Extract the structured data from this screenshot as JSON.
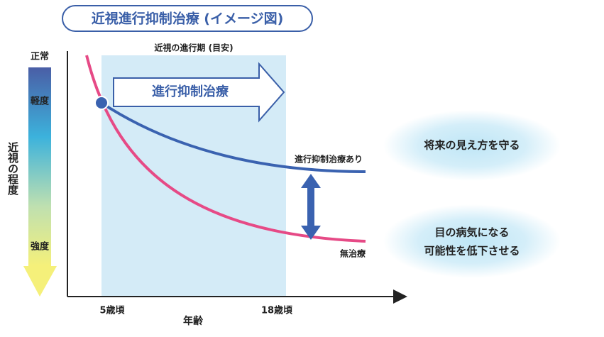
{
  "title": "近視進行抑制治療 (イメージ図)",
  "period_label": "近視の進行期 (目安)",
  "treatment_arrow": "進行抑制治療",
  "curves": {
    "treated": "進行抑制治療あり",
    "untreated": "無治療"
  },
  "y_axis": {
    "label": "近視の程度",
    "levels": [
      "正常",
      "軽度",
      "強度"
    ]
  },
  "x_axis": {
    "label": "年齢",
    "ticks": [
      "5歳頃",
      "18歳頃"
    ]
  },
  "effects": [
    {
      "lines": [
        "将来の見え方を守る"
      ]
    },
    {
      "lines": [
        "目の病気になる",
        "可能性を低下させる"
      ]
    }
  ]
}
